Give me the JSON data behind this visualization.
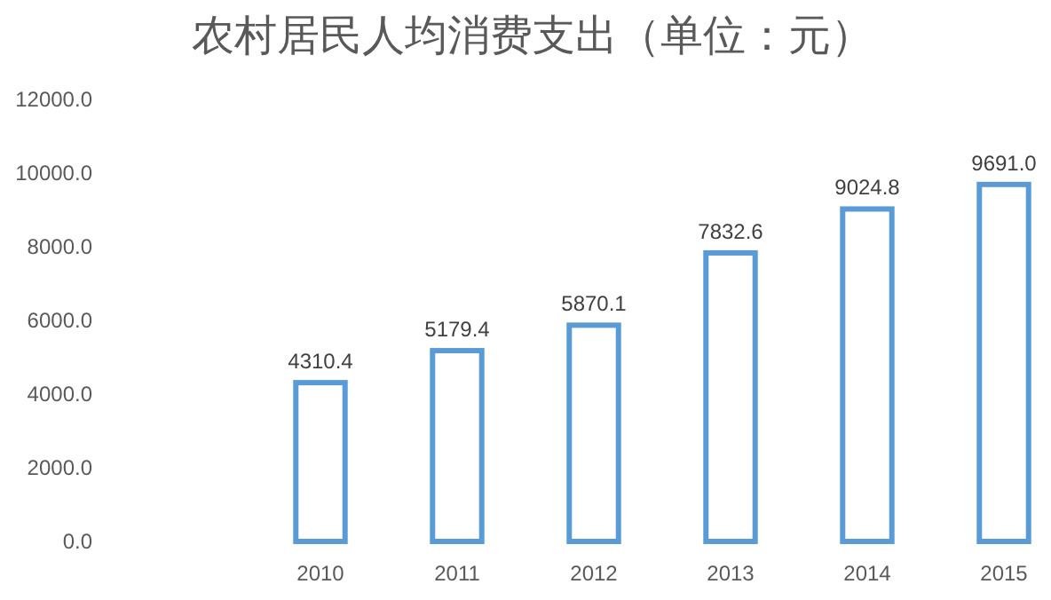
{
  "chart_data": {
    "type": "bar",
    "title": "农村居民人均消费支出（单位：元）",
    "categories": [
      null,
      "2010",
      "2011",
      "2012",
      "2013",
      "2014",
      "2015"
    ],
    "values": [
      null,
      4310.4,
      5179.4,
      5870.1,
      7832.6,
      9024.8,
      9691.0
    ],
    "value_labels": [
      null,
      "4310.4",
      "5179.4",
      "5870.1",
      "7832.6",
      "9024.8",
      "9691.0"
    ],
    "color": "#5b9bd5",
    "ylim": [
      0,
      12000
    ],
    "yticks": [
      {
        "value": 0,
        "label": "0.0"
      },
      {
        "value": 2000,
        "label": "2000.0"
      },
      {
        "value": 4000,
        "label": "4000.0"
      },
      {
        "value": 6000,
        "label": "6000.0"
      },
      {
        "value": 8000,
        "label": "8000.0"
      },
      {
        "value": 10000,
        "label": "10000.0"
      },
      {
        "value": 12000,
        "label": "12000.0"
      }
    ]
  }
}
